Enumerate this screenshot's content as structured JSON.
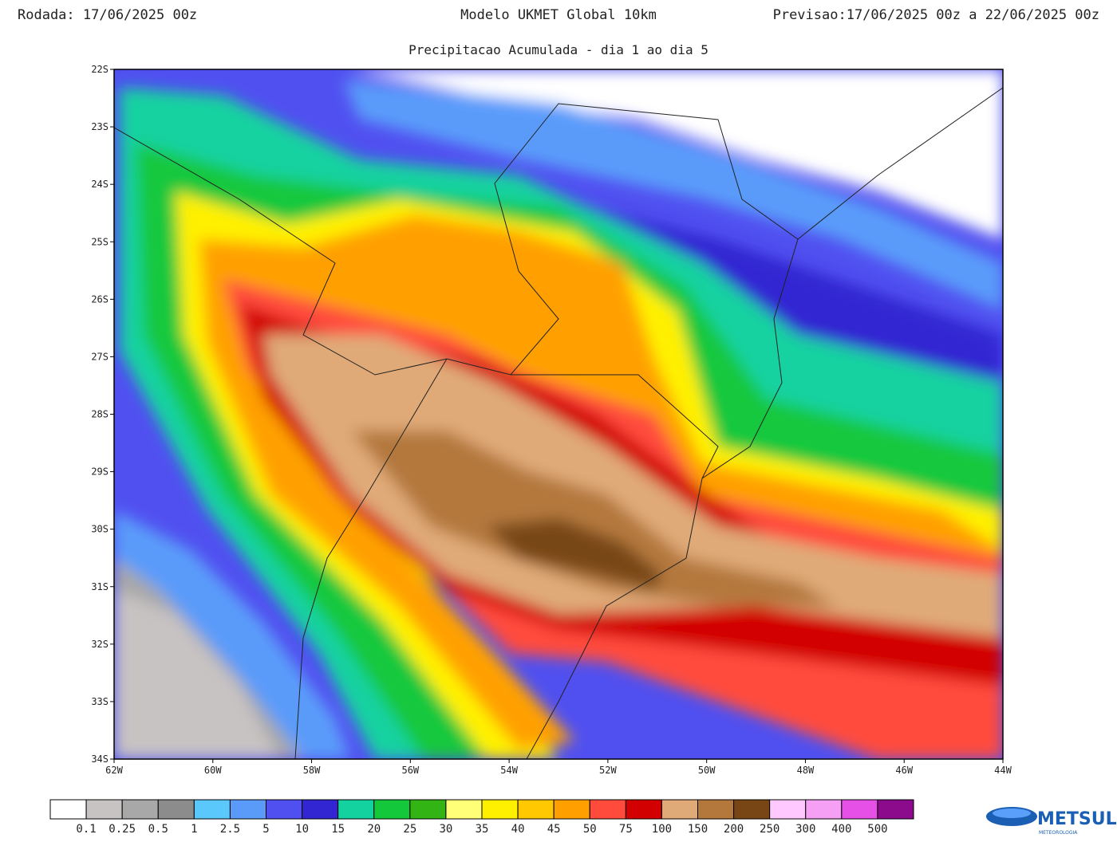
{
  "header": {
    "run": "Rodada: 17/06/2025 00z",
    "model": "Modelo UKMET Global 10km",
    "forecast": "Previsao:17/06/2025 00z a 22/06/2025 00z",
    "subtitle": "Precipitacao Acumulada - dia 1 ao dia 5"
  },
  "map": {
    "lat_labels": [
      "22S",
      "23S",
      "24S",
      "25S",
      "26S",
      "27S",
      "28S",
      "29S",
      "30S",
      "31S",
      "32S",
      "33S",
      "34S"
    ],
    "lon_labels": [
      "62W",
      "60W",
      "58W",
      "56W",
      "54W",
      "52W",
      "50W",
      "48W",
      "46W",
      "44W"
    ]
  },
  "colorbar": {
    "colors": [
      "#ffffff",
      "#c8c3c3",
      "#a8a8a8",
      "#8c8c8c",
      "#5ac8fa",
      "#5a9bfa",
      "#5050f0",
      "#3226d2",
      "#14d2a0",
      "#14c83c",
      "#32b414",
      "#ffff78",
      "#fff000",
      "#ffc800",
      "#ffa000",
      "#ff4b3c",
      "#d20000",
      "#e0aa78",
      "#b4783c",
      "#784614",
      "#ffc8ff",
      "#f5a0f5",
      "#e650e6",
      "#8c0a8c"
    ],
    "labels": [
      "0.1",
      "0.25",
      "0.5",
      "1",
      "2.5",
      "5",
      "10",
      "15",
      "20",
      "25",
      "30",
      "35",
      "40",
      "45",
      "50",
      "75",
      "100",
      "150",
      "200",
      "250",
      "300",
      "400",
      "500"
    ]
  },
  "logo": {
    "name": "METSUL",
    "tagline": "METEOROLOGIA"
  }
}
